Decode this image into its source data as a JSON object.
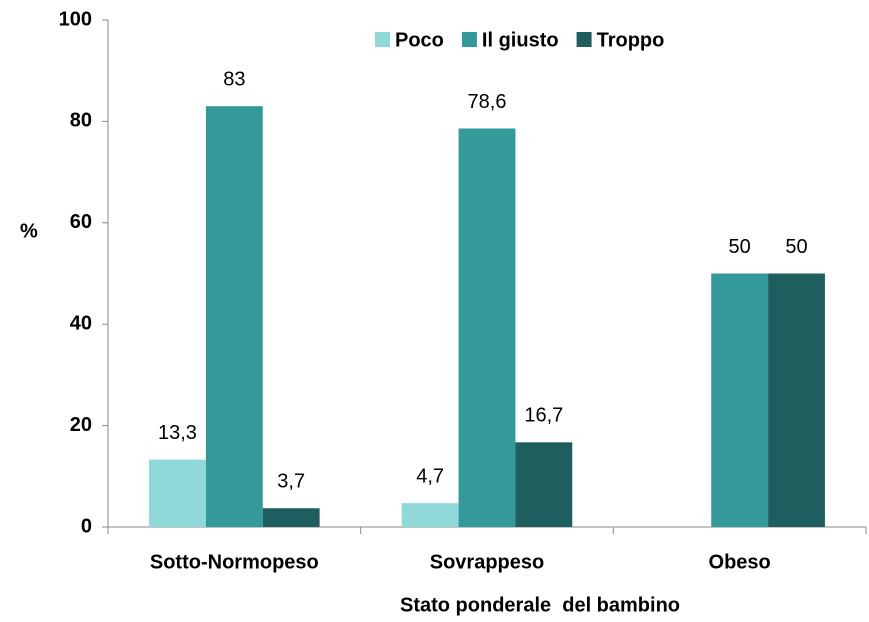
{
  "chart_data": {
    "type": "bar",
    "y_label": "%",
    "x_label": "Stato ponderale  del bambino",
    "categories": [
      "Sotto-Normopeso",
      "Sovrappeso",
      "Obeso"
    ],
    "series": [
      {
        "name": "Poco",
        "color": "#8fd9d9",
        "values": [
          13.3,
          4.7,
          null
        ],
        "value_labels": [
          "13,3",
          "4,7",
          null
        ]
      },
      {
        "name": "Il giusto",
        "color": "#339999",
        "values": [
          83,
          78.6,
          50
        ],
        "value_labels": [
          "83",
          "78,6",
          "50"
        ]
      },
      {
        "name": "Troppo",
        "color": "#1f5e5e",
        "values": [
          3.7,
          16.7,
          50
        ],
        "value_labels": [
          "3,7",
          "16,7",
          "50"
        ]
      }
    ],
    "ylim": [
      0,
      100
    ],
    "yticks": [
      0,
      20,
      40,
      60,
      80,
      100
    ],
    "grid": false,
    "legend": "top"
  }
}
